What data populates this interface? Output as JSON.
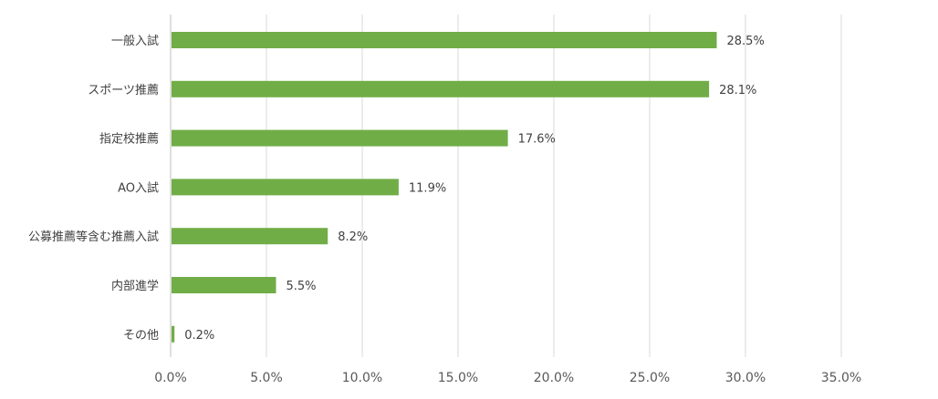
{
  "chart_data": {
    "type": "bar",
    "orientation": "horizontal",
    "categories": [
      "一般入試",
      "スポーツ推薦",
      "指定校推薦",
      "AO入試",
      "公募推薦等含む推薦入試",
      "内部進学",
      "その他"
    ],
    "values": [
      28.5,
      28.1,
      17.6,
      11.9,
      8.2,
      5.5,
      0.2
    ],
    "value_labels": [
      "28.5%",
      "28.1%",
      "17.6%",
      "11.9%",
      "8.2%",
      "5.5%",
      "0.2%"
    ],
    "x_ticks": [
      "0.0%",
      "5.0%",
      "10.0%",
      "15.0%",
      "20.0%",
      "25.0%",
      "30.0%",
      "35.0%"
    ],
    "xlim": [
      0,
      35
    ],
    "grid": true,
    "legend": "none",
    "bar_color": "#70ad47",
    "title": "",
    "xlabel": "",
    "ylabel": ""
  }
}
